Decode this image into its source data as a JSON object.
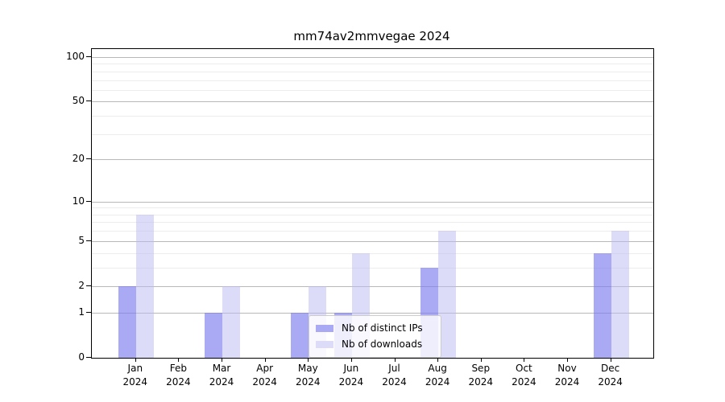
{
  "chart_data": {
    "type": "bar",
    "title": "mm74av2mmvegae 2024",
    "months": [
      "Jan",
      "Feb",
      "Mar",
      "Apr",
      "May",
      "Jun",
      "Jul",
      "Aug",
      "Sep",
      "Oct",
      "Nov",
      "Dec"
    ],
    "year_label": "2024",
    "series": [
      {
        "name": "Nb of distinct IPs",
        "bar_color": "rgba(123,123,238,0.65)",
        "legend_color": "#a9a9f4",
        "values": [
          2,
          0,
          1,
          0,
          1,
          1,
          0,
          3,
          0,
          0,
          0,
          4
        ]
      },
      {
        "name": "Nb of downloads",
        "bar_color": "rgba(185,185,241,0.5)",
        "legend_color": "#dcdcf8",
        "values": [
          8,
          0,
          2,
          0,
          2,
          4,
          0,
          6,
          0,
          0,
          0,
          6
        ]
      }
    ],
    "y_axis": {
      "scale": "log1p",
      "ticks": [
        0,
        1,
        2,
        5,
        10,
        20,
        50,
        100
      ],
      "minor_ticks": [
        3,
        4,
        6,
        7,
        8,
        9,
        30,
        40,
        60,
        70,
        80,
        90
      ],
      "ylim": [
        0,
        100
      ]
    },
    "layout": {
      "grid": "horizontal",
      "legend_position": "lower-center",
      "major_grid_color": "#b8b8b8",
      "minor_grid_color": "#ececec",
      "spine_color": "#000000",
      "text_color": "#000000"
    }
  }
}
